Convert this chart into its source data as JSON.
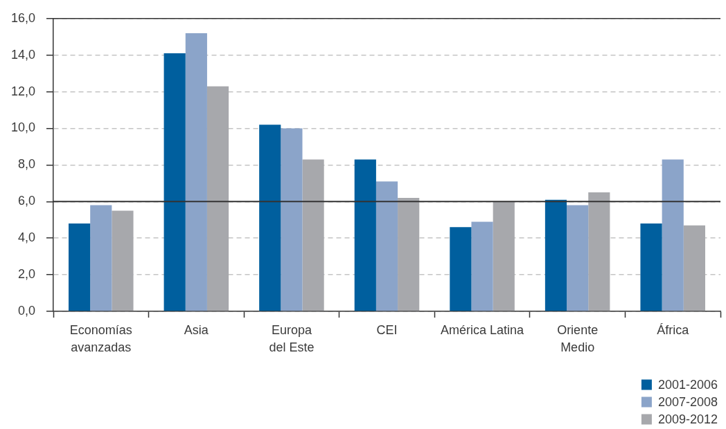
{
  "chart_data": {
    "type": "bar",
    "categories": [
      "Economías\navanzadas",
      "Asia",
      "Europa\ndel Este",
      "CEI",
      "América Latina",
      "Oriente\nMedio",
      "África"
    ],
    "series": [
      {
        "name": "2001-2006",
        "color": "#005f9e",
        "values": [
          4.8,
          14.1,
          10.2,
          8.3,
          4.6,
          6.1,
          4.8
        ]
      },
      {
        "name": "2007-2008",
        "color": "#8ba4c9",
        "values": [
          5.8,
          15.2,
          10.0,
          7.1,
          4.9,
          5.8,
          8.3
        ]
      },
      {
        "name": "2009-2012",
        "color": "#a7a8ac",
        "values": [
          5.5,
          12.3,
          8.3,
          6.2,
          6.0,
          6.5,
          4.7
        ]
      }
    ],
    "ylim": [
      0,
      16
    ],
    "yticks": [
      {
        "value": 0,
        "label": "0,0"
      },
      {
        "value": 2,
        "label": "2,0"
      },
      {
        "value": 4,
        "label": "4,0"
      },
      {
        "value": 6,
        "label": "6,0"
      },
      {
        "value": 8,
        "label": "8,0"
      },
      {
        "value": 10,
        "label": "10,0"
      },
      {
        "value": 12,
        "label": "12,0"
      },
      {
        "value": 14,
        "label": "14,0"
      },
      {
        "value": 16,
        "label": "16,0"
      }
    ],
    "grid": "y",
    "legend": "bottom right",
    "ref_lines": [
      {
        "axis": "y",
        "value": 6,
        "color": "#333333"
      }
    ]
  }
}
